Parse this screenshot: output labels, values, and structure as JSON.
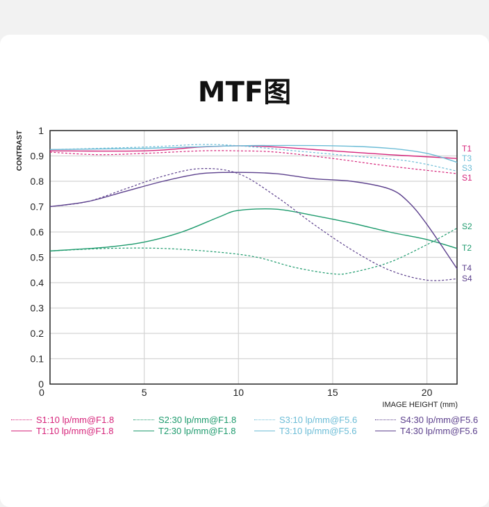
{
  "title": "MTF图",
  "chart_data": {
    "type": "line",
    "title": "MTF图",
    "xlabel": "IMAGE HEIGHT  (mm)",
    "ylabel": "CONTRAST",
    "xlim": [
      0,
      21.6
    ],
    "ylim": [
      0,
      1
    ],
    "xticks": [
      "0",
      "5",
      "10",
      "15",
      "20"
    ],
    "yticks": [
      "0",
      "0.1",
      "0.2",
      "0.3",
      "0.4",
      "0.5",
      "0.6",
      "0.7",
      "0.8",
      "0.9",
      "1"
    ],
    "grid": true,
    "legend_position": "bottom",
    "series": [
      {
        "name": "S1",
        "legend": "S1:10 lp/mm@F1.8",
        "color": "#d6237a",
        "dash": true,
        "x": [
          0,
          2.5,
          5,
          8,
          10,
          12,
          15,
          18,
          21.6
        ],
        "y": [
          0.915,
          0.905,
          0.91,
          0.92,
          0.92,
          0.915,
          0.89,
          0.86,
          0.83
        ]
      },
      {
        "name": "T1",
        "legend": "T1:10 lp/mm@F1.8",
        "color": "#d6237a",
        "dash": false,
        "x": [
          0,
          5,
          8,
          10,
          12,
          15,
          18,
          21.6
        ],
        "y": [
          0.92,
          0.92,
          0.935,
          0.94,
          0.935,
          0.92,
          0.905,
          0.89
        ]
      },
      {
        "name": "S2",
        "legend": "S2:30 lp/mm@F1.8",
        "color": "#1c9a6c",
        "dash": true,
        "x": [
          0,
          3,
          6,
          9,
          11,
          13,
          15,
          16,
          18,
          20,
          21.6
        ],
        "y": [
          0.525,
          0.535,
          0.535,
          0.52,
          0.5,
          0.46,
          0.435,
          0.44,
          0.48,
          0.55,
          0.615
        ]
      },
      {
        "name": "T2",
        "legend": "T2:30 lp/mm@F1.8",
        "color": "#1c9a6c",
        "dash": false,
        "x": [
          0,
          3,
          5,
          7,
          9,
          10,
          12,
          14,
          16,
          18,
          20,
          21.6
        ],
        "y": [
          0.525,
          0.54,
          0.56,
          0.6,
          0.66,
          0.685,
          0.69,
          0.665,
          0.635,
          0.6,
          0.57,
          0.535
        ]
      },
      {
        "name": "S3",
        "legend": "S3:10 lp/mm@F5.6",
        "color": "#6bbcd6",
        "dash": true,
        "x": [
          0,
          5,
          8,
          10,
          13,
          16,
          19,
          21.6
        ],
        "y": [
          0.925,
          0.935,
          0.945,
          0.94,
          0.92,
          0.9,
          0.88,
          0.84
        ]
      },
      {
        "name": "T3",
        "legend": "T3:10 lp/mm@F5.6",
        "color": "#6bbcd6",
        "dash": false,
        "x": [
          0,
          5,
          10,
          15,
          18,
          20,
          21.6
        ],
        "y": [
          0.925,
          0.93,
          0.94,
          0.94,
          0.93,
          0.91,
          0.875
        ]
      },
      {
        "name": "S4",
        "legend": "S4:30 lp/mm@F5.6",
        "color": "#5b3f8c",
        "dash": true,
        "x": [
          0,
          2,
          4,
          6,
          8,
          10,
          12,
          14,
          16,
          18,
          20,
          21.6
        ],
        "y": [
          0.7,
          0.72,
          0.77,
          0.82,
          0.85,
          0.83,
          0.74,
          0.63,
          0.53,
          0.45,
          0.41,
          0.415
        ]
      },
      {
        "name": "T4",
        "legend": "T4:30 lp/mm@F5.6",
        "color": "#5b3f8c",
        "dash": false,
        "x": [
          0,
          2,
          4,
          6,
          8,
          10,
          12,
          14,
          16,
          18,
          19,
          20,
          21.6
        ],
        "y": [
          0.7,
          0.72,
          0.76,
          0.8,
          0.83,
          0.835,
          0.83,
          0.81,
          0.8,
          0.77,
          0.72,
          0.63,
          0.455
        ]
      }
    ],
    "legend_order": [
      "S1",
      "S2",
      "S3",
      "S4",
      "T1",
      "T2",
      "T3",
      "T4"
    ]
  }
}
